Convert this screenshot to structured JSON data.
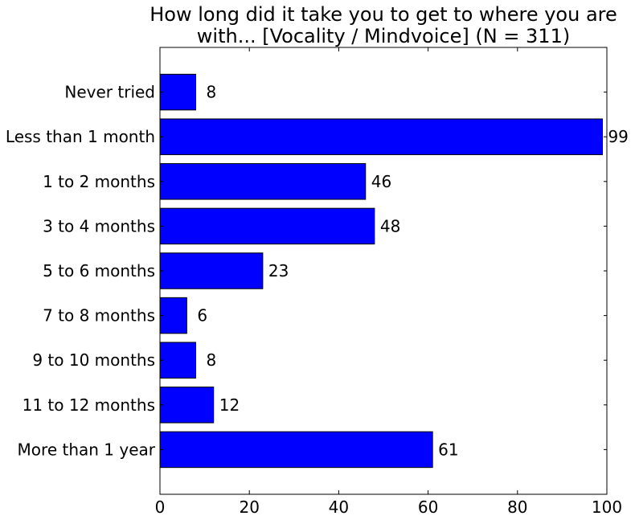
{
  "chart_data": {
    "type": "bar",
    "orientation": "horizontal",
    "title": "How long did it take you to get to where you are with... [Vocality / Mindvoice] (N = 311)",
    "title_lines": [
      "How long did it take you to get to where you are",
      "with... [Vocality / Mindvoice] (N = 311)"
    ],
    "xlabel": "",
    "ylabel": "",
    "categories": [
      "Never tried",
      "Less than 1 month",
      "1 to 2 months",
      "3 to 4 months",
      "5 to 6 months",
      "7 to 8 months",
      "9 to 10 months",
      "11 to 12 months",
      "More than 1 year"
    ],
    "values": [
      8,
      99,
      46,
      48,
      23,
      6,
      8,
      12,
      61
    ],
    "data_labels": [
      "8",
      "99",
      "46",
      "48",
      "23",
      "6",
      "8",
      "12",
      "61"
    ],
    "xlim": [
      0,
      100
    ],
    "x_ticks": [
      0,
      20,
      40,
      60,
      80,
      100
    ],
    "x_tick_labels": [
      "0",
      "20",
      "40",
      "60",
      "80",
      "100"
    ],
    "grid": false,
    "legend": "none",
    "bar_color": "#0000ff",
    "bar_edge_color": "#000000"
  }
}
